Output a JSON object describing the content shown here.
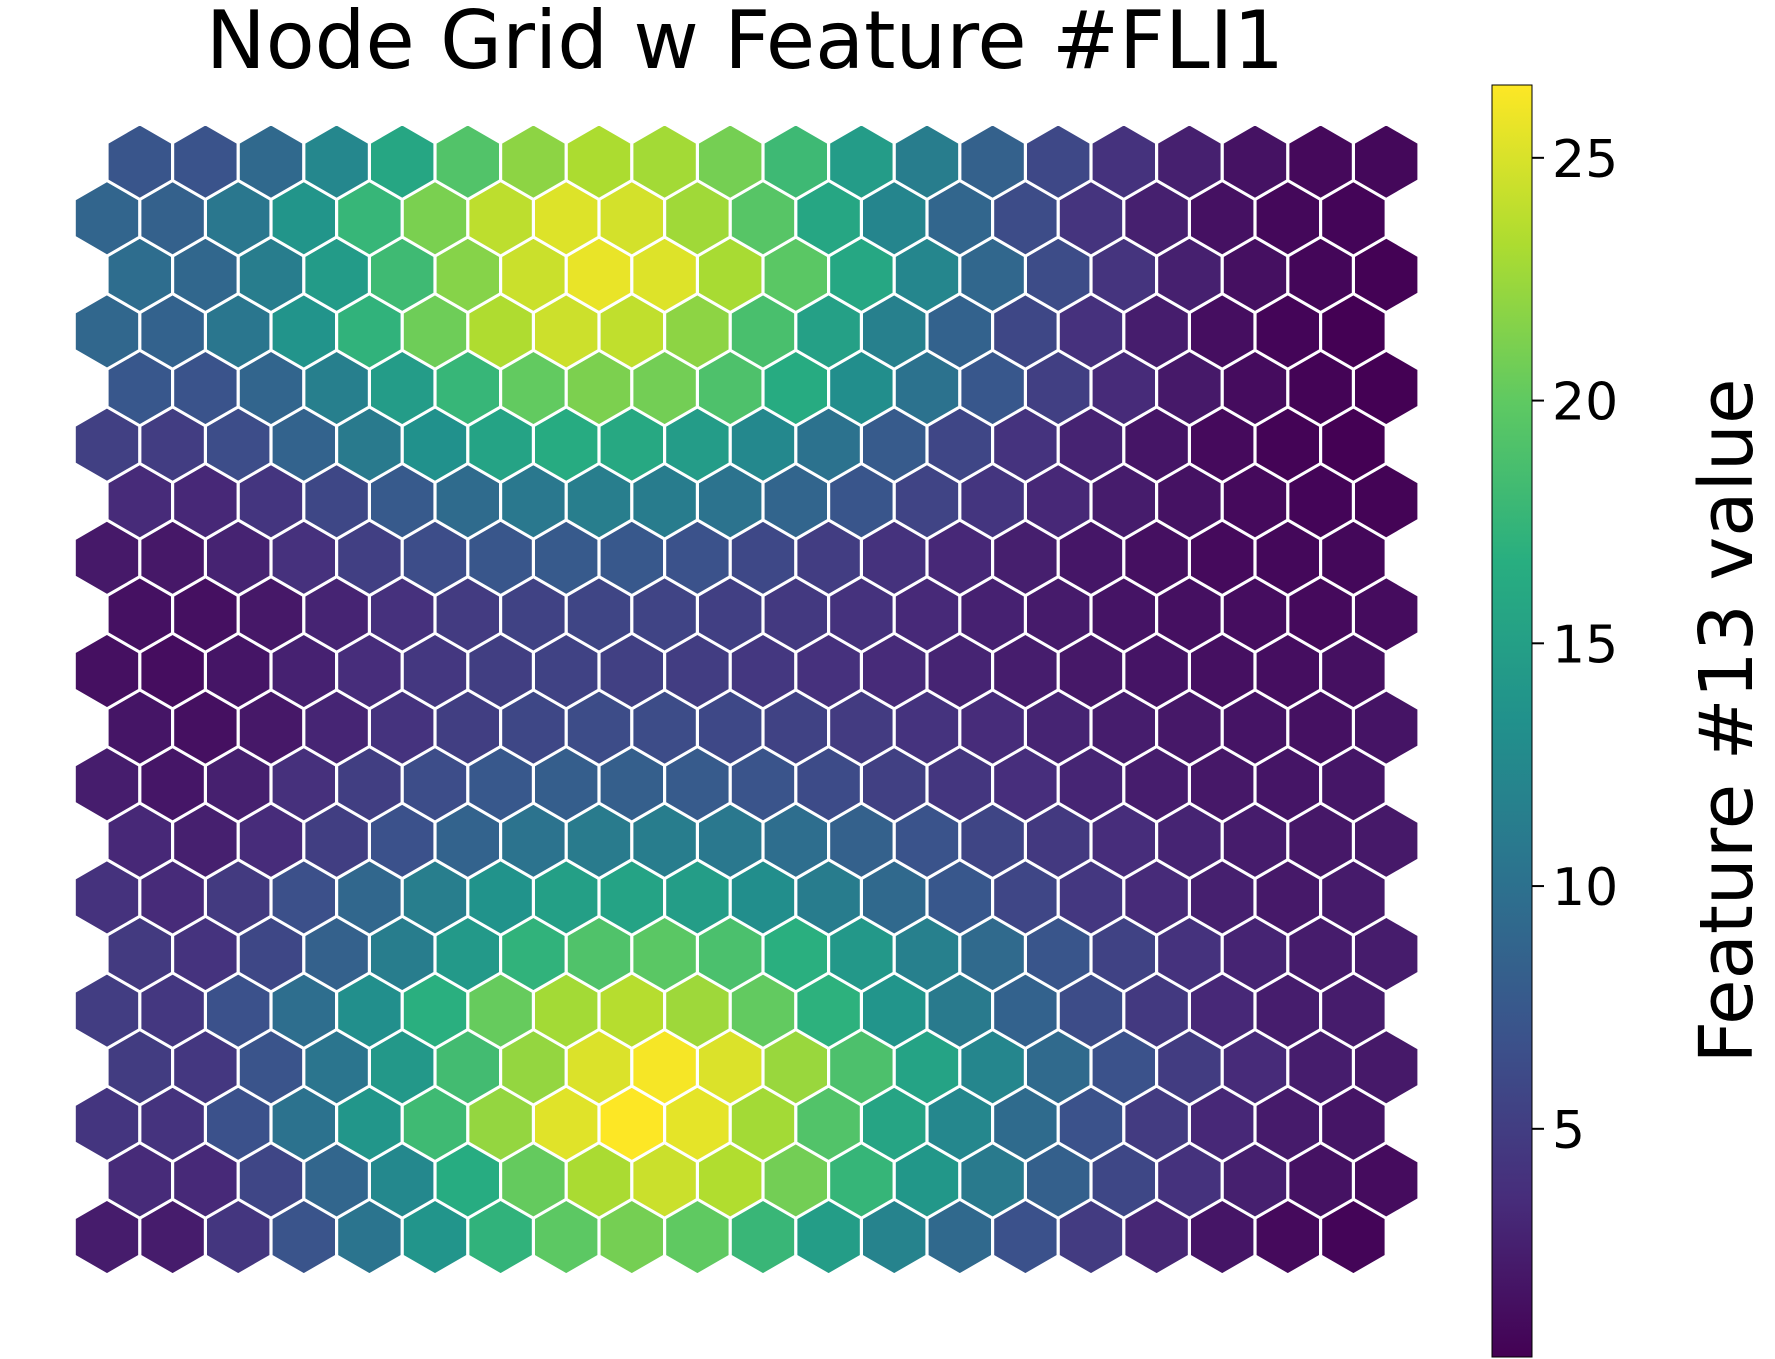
{
  "chart_data": {
    "type": "heatmap",
    "subtype": "hexagonal-grid",
    "title": "Node Grid w Feature #FLI1",
    "colorbar": {
      "label": "Feature #13 value",
      "colormap": "viridis",
      "range": [
        0.3,
        26.5
      ],
      "ticks": [
        5,
        10,
        15,
        20,
        25
      ],
      "tick_labels": [
        "5",
        "10",
        "15",
        "20",
        "25"
      ]
    },
    "grid": {
      "rows": 20,
      "cols": 20,
      "layout": "even rows offset right"
    },
    "values": [
      [
        2.3,
        2.3,
        4.4,
        7.1,
        10.3,
        13.8,
        17.2,
        19.8,
        20.9,
        20.0,
        17.7,
        14.8,
        11.9,
        9.2,
        6.8,
        4.8,
        3.1,
        1.8,
        1.0,
        0.6
      ],
      [
        3.4,
        3.3,
        5.8,
        8.9,
        12.5,
        16.4,
        20.2,
        23.1,
        24.4,
        23.4,
        20.8,
        17.5,
        14.1,
        11.0,
        8.3,
        5.9,
        4.0,
        2.6,
        1.6,
        1.1
      ],
      [
        4.3,
        4.1,
        6.8,
        10.1,
        14.0,
        18.1,
        22.2,
        25.3,
        26.5,
        25.5,
        22.8,
        19.2,
        15.6,
        12.3,
        9.4,
        6.9,
        4.8,
        3.2,
        2.2,
        1.8
      ],
      [
        4.9,
        4.5,
        7.1,
        10.4,
        14.2,
        18.3,
        22.2,
        25.1,
        26.2,
        25.1,
        22.4,
        18.9,
        15.4,
        12.2,
        9.3,
        6.9,
        4.9,
        3.4,
        2.4,
        2.1
      ],
      [
        5.0,
        4.5,
        6.8,
        9.7,
        13.2,
        16.8,
        20.3,
        22.8,
        23.6,
        22.6,
        20.1,
        17.0,
        13.8,
        11.0,
        8.5,
        6.3,
        4.6,
        3.2,
        2.4,
        2.3
      ],
      [
        4.7,
        4.1,
        5.9,
        8.4,
        11.3,
        14.3,
        17.2,
        19.1,
        19.7,
        18.8,
        16.8,
        14.2,
        11.6,
        9.3,
        7.2,
        5.4,
        4.0,
        2.9,
        2.3,
        2.3
      ],
      [
        4.0,
        3.4,
        4.7,
        6.7,
        9.0,
        11.4,
        13.6,
        15.0,
        15.4,
        14.7,
        13.1,
        11.2,
        9.2,
        7.4,
        5.8,
        4.5,
        3.4,
        2.6,
        2.1,
        2.2
      ],
      [
        3.2,
        2.6,
        3.5,
        5.1,
        6.8,
        8.6,
        10.2,
        11.1,
        11.3,
        10.8,
        9.7,
        8.4,
        7.0,
        5.7,
        4.6,
        3.6,
        2.9,
        2.3,
        2.0,
        2.1
      ],
      [
        2.4,
        1.9,
        2.6,
        3.8,
        5.1,
        6.4,
        7.5,
        8.1,
        8.2,
        7.8,
        7.1,
        6.2,
        5.3,
        4.4,
        3.7,
        3.0,
        2.4,
        2.0,
        1.8,
        1.9
      ],
      [
        1.8,
        1.4,
        2.0,
        3.0,
        4.1,
        5.1,
        5.9,
        6.3,
        6.3,
        6.0,
        5.4,
        4.8,
        4.1,
        3.5,
        2.9,
        2.4,
        2.0,
        1.7,
        1.5,
        1.7
      ],
      [
        1.4,
        1.2,
        1.8,
        2.7,
        3.6,
        4.5,
        5.1,
        5.4,
        5.3,
        5.0,
        4.5,
        3.9,
        3.4,
        2.9,
        2.4,
        2.0,
        1.7,
        1.4,
        1.3,
        1.4
      ],
      [
        1.5,
        1.4,
        2.0,
        2.9,
        3.9,
        4.8,
        5.4,
        5.7,
        5.6,
        5.2,
        4.6,
        4.0,
        3.3,
        2.7,
        2.2,
        1.7,
        1.4,
        1.2,
        1.0,
        1.1
      ],
      [
        2.1,
        2.0,
        2.8,
        3.9,
        5.2,
        6.4,
        7.3,
        7.7,
        7.5,
        6.9,
        6.0,
        5.0,
        4.0,
        3.2,
        2.5,
        1.9,
        1.4,
        1.0,
        0.8,
        0.8
      ],
      [
        3.4,
        3.2,
        4.3,
        5.9,
        7.7,
        9.4,
        10.8,
        11.4,
        11.2,
        10.2,
        8.8,
        7.2,
        5.6,
        4.3,
        3.2,
        2.3,
        1.6,
        1.0,
        0.6,
        0.5
      ],
      [
        5.3,
        5.0,
        6.4,
        8.6,
        11.0,
        13.4,
        15.4,
        16.3,
        16.0,
        14.6,
        12.5,
        10.1,
        7.8,
        5.8,
        4.1,
        2.8,
        1.8,
        1.0,
        0.5,
        0.3
      ],
      [
        7.4,
        7.0,
        8.8,
        11.5,
        14.6,
        17.6,
        20.1,
        21.2,
        20.8,
        19.0,
        16.3,
        13.1,
        10.1,
        7.4,
        5.2,
        3.4,
        2.1,
        1.1,
        0.5,
        0.3
      ],
      [
        9.0,
        8.5,
        10.6,
        13.7,
        17.2,
        20.6,
        23.3,
        24.5,
        24.0,
        21.9,
        18.7,
        15.1,
        11.6,
        8.5,
        5.9,
        3.9,
        2.4,
        1.3,
        0.6,
        0.3
      ],
      [
        9.6,
        9.0,
        11.3,
        14.5,
        18.1,
        21.6,
        24.4,
        25.7,
        25.2,
        23.0,
        19.7,
        15.9,
        12.2,
        9.0,
        6.3,
        4.2,
        2.6,
        1.4,
        0.7,
        0.4
      ],
      [
        8.8,
        8.4,
        10.7,
        13.9,
        17.6,
        21.1,
        23.9,
        25.2,
        24.8,
        22.7,
        19.5,
        15.8,
        12.1,
        8.9,
        6.3,
        4.2,
        2.6,
        1.5,
        0.8,
        0.6
      ],
      [
        7.2,
        7.0,
        9.2,
        12.3,
        15.8,
        19.2,
        21.9,
        23.2,
        22.8,
        20.9,
        18.0,
        14.6,
        11.3,
        8.4,
        6.0,
        4.0,
        2.6,
        1.6,
        0.9,
        0.8
      ]
    ]
  }
}
